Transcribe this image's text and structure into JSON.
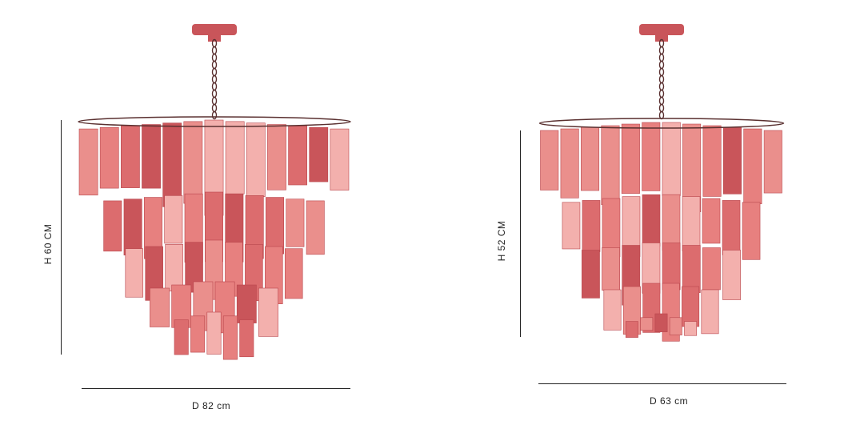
{
  "products": [
    {
      "height_label": "H 60 CM",
      "diameter_label": "D 82 cm"
    },
    {
      "height_label": "H 52 CM",
      "diameter_label": "D 63 cm"
    }
  ],
  "colors": {
    "glass": "#e7807f",
    "glass_dark": "#c9555a",
    "glass_light": "#f3b0ad",
    "chain": "#5a3030",
    "dimension_line": "#222222",
    "background": "#ffffff"
  }
}
